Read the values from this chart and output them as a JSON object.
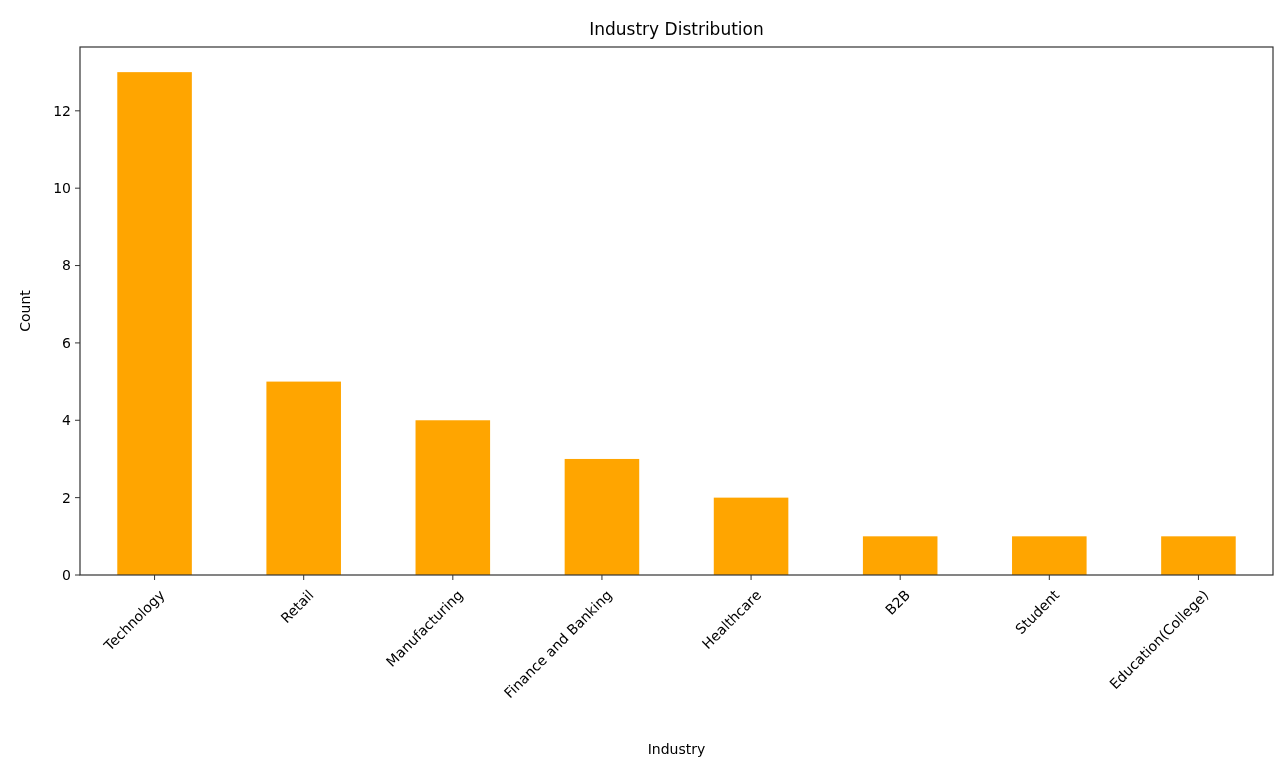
{
  "chart_data": {
    "type": "bar",
    "title": "Industry Distribution",
    "xlabel": "Industry",
    "ylabel": "Count",
    "categories": [
      "Technology",
      "Retail",
      "Manufacturing",
      "Finance and Banking",
      "Healthcare",
      "B2B",
      "Student",
      "Education(College)"
    ],
    "values": [
      13,
      5,
      4,
      3,
      2,
      1,
      1,
      1
    ],
    "color": "#ffa500",
    "ylim": [
      0,
      13.65
    ],
    "yticks": [
      0,
      2,
      4,
      6,
      8,
      10,
      12
    ],
    "grid": false
  }
}
